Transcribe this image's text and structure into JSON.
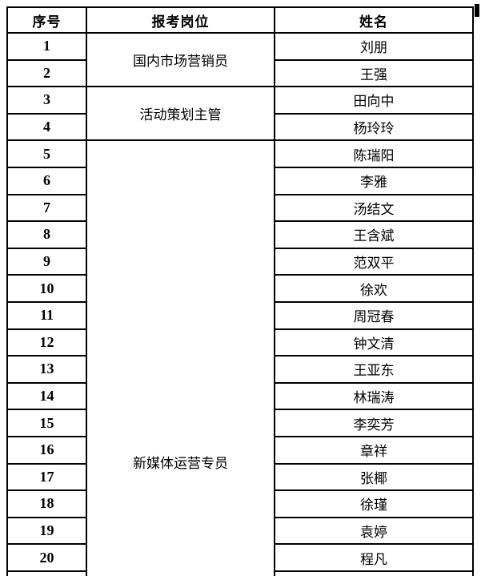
{
  "colors": {
    "text": "#000000",
    "border": "#000000",
    "background": "#ffffff"
  },
  "table": {
    "headers": [
      "序号",
      "报考岗位",
      "姓名"
    ],
    "groups": [
      {
        "position": "国内市场营销员",
        "rows": [
          {
            "no": "1",
            "name": "刘朋"
          },
          {
            "no": "2",
            "name": "王强"
          }
        ]
      },
      {
        "position": "活动策划主管",
        "rows": [
          {
            "no": "3",
            "name": "田向中"
          },
          {
            "no": "4",
            "name": "杨玲玲"
          }
        ]
      },
      {
        "position": "新媒体运营专员",
        "rows": [
          {
            "no": "5",
            "name": "陈瑞阳"
          },
          {
            "no": "6",
            "name": "李雅"
          },
          {
            "no": "7",
            "name": "汤结文"
          },
          {
            "no": "8",
            "name": "王含斌"
          },
          {
            "no": "9",
            "name": "范双平"
          },
          {
            "no": "10",
            "name": "徐欢"
          },
          {
            "no": "11",
            "name": "周冠春"
          },
          {
            "no": "12",
            "name": "钟文清"
          },
          {
            "no": "13",
            "name": "王亚东"
          },
          {
            "no": "14",
            "name": "林瑞涛"
          },
          {
            "no": "15",
            "name": "李奕芳"
          },
          {
            "no": "16",
            "name": "章祥"
          },
          {
            "no": "17",
            "name": "张椰"
          },
          {
            "no": "18",
            "name": "徐瑾"
          },
          {
            "no": "19",
            "name": "袁婷"
          },
          {
            "no": "20",
            "name": "程凡"
          }
        ]
      }
    ]
  }
}
